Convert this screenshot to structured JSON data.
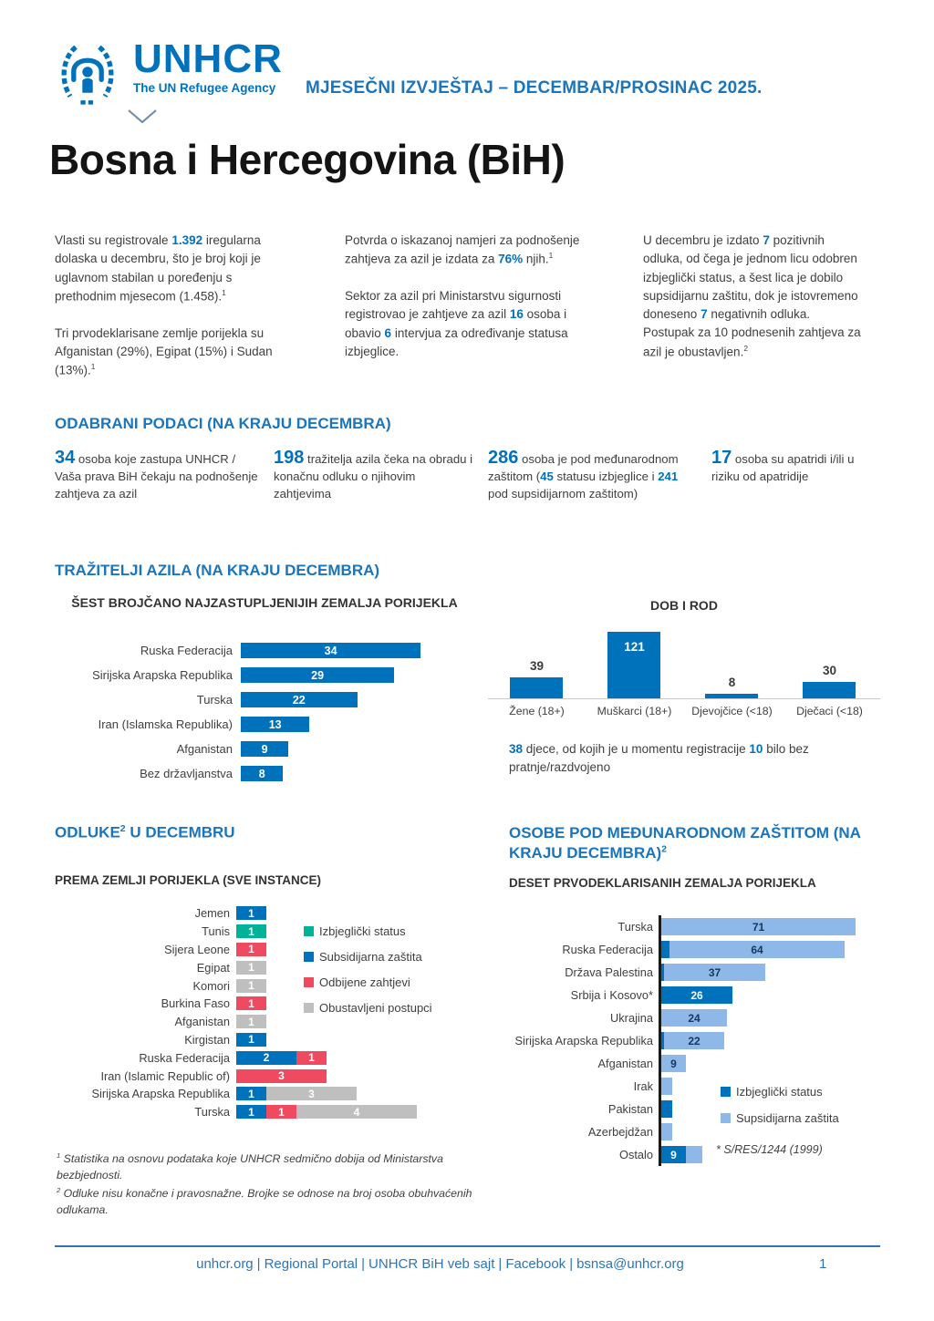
{
  "header": {
    "logo": {
      "wordmark": "UNHCR",
      "tagline": "The UN Refugee Agency"
    },
    "report_title": "MJESEČNI IZVJEŠTAJ – DECEMBAR/PROSINAC 2025.",
    "page_title": "Bosna i Hercegovina (BiH)"
  },
  "intro": {
    "columns": [
      {
        "paragraphs": [
          [
            {
              "t": "Vlasti su registrovale "
            },
            {
              "t": "1.392",
              "c": "hl"
            },
            {
              "t": " iregularna dolaska u decembru, što je broj koji je uglavnom stabilan u poređenju s prethodnim mjesecom (1.458)."
            },
            {
              "t": "1",
              "c": "sup"
            }
          ],
          [
            {
              "t": "Tri prvodeklarisane zemlje porijekla su Afganistan (29%), Egipat (15%) i Sudan (13%)."
            },
            {
              "t": "1",
              "c": "sup"
            }
          ]
        ]
      },
      {
        "paragraphs": [
          [
            {
              "t": "Potvrda o iskazanoj namjeri za podnošenje zahtjeva za azil je izdata za "
            },
            {
              "t": "76%",
              "c": "hl"
            },
            {
              "t": " njih."
            },
            {
              "t": "1",
              "c": "sup"
            }
          ],
          [
            {
              "t": "Sektor za azil pri Ministarstvu sigurnosti registrovao je zahtjeve za azil "
            },
            {
              "t": "16",
              "c": "hl"
            },
            {
              "t": " osoba i obavio "
            },
            {
              "t": "6",
              "c": "hl"
            },
            {
              "t": " intervjua za određivanje statusa izbjeglice."
            }
          ]
        ]
      },
      {
        "paragraphs": [
          [
            {
              "t": "U decembru je izdato "
            },
            {
              "t": "7",
              "c": "hl"
            },
            {
              "t": " pozitivnih odluka, od čega je jednom licu odobren izbjeglički status, a šest lica je dobilo supsidijarnu zaštitu, dok je istovremeno doneseno "
            },
            {
              "t": "7",
              "c": "hl"
            },
            {
              "t": " negativnih odluka. Postupak za 10 podnesenih zahtjeva za azil je obustavljen."
            },
            {
              "t": "2",
              "c": "sup"
            }
          ]
        ]
      }
    ]
  },
  "key_data": {
    "heading": "ODABRANI PODACI (NA KRAJU DECEMBRA)",
    "stats": [
      [
        {
          "t": "34",
          "c": "num"
        },
        {
          "t": " osoba koje zastupa UNHCR / Vaša prava BiH čekaju na podnošenje zahtjeva za azil"
        }
      ],
      [
        {
          "t": "198",
          "c": "num"
        },
        {
          "t": " tražitelja azila čeka na obradu i konačnu odluku o njihovim zahtjevima"
        }
      ],
      [
        {
          "t": "286",
          "c": "num"
        },
        {
          "t": " osoba je pod međunarodnom zaštitom ("
        },
        {
          "t": "45",
          "c": "hl"
        },
        {
          "t": " statusu izbjeglice i "
        },
        {
          "t": "241",
          "c": "hl"
        },
        {
          "t": " pod supsidijarnom zaštitom)"
        }
      ],
      [
        {
          "t": "17",
          "c": "num"
        },
        {
          "t": " osoba su apatridi i/ili u riziku od apatridije"
        }
      ]
    ]
  },
  "asylum_section": {
    "heading": "TRAŽITELJI AZILA (NA KRAJU DECEMBRA)",
    "children_note": [
      {
        "t": "38",
        "c": "hl"
      },
      {
        "t": " djece, od kojih je u momentu registracije "
      },
      {
        "t": "10",
        "c": "hl"
      },
      {
        "t": " bilo bez pratnje/razdvojeno"
      }
    ]
  },
  "decisions_section": {
    "heading_segments": [
      {
        "t": "ODLUKE"
      },
      {
        "t": "2",
        "c": "sup"
      },
      {
        "t": " U DECEMBRU"
      }
    ]
  },
  "protection_section": {
    "heading_segments": [
      {
        "t": "OSOBE POD MEĐUNARODNOM ZAŠTITOM (NA KRAJU DECEMBRA)"
      },
      {
        "t": "2",
        "c": "sup"
      }
    ]
  },
  "footnotes": [
    [
      {
        "t": "1",
        "c": "sup"
      },
      {
        "t": " Statistika na osnovu podataka koje UNHCR sedmično dobija od Ministarstva bezbjednosti."
      }
    ],
    [
      {
        "t": "2",
        "c": "sup"
      },
      {
        "t": " Odluke nisu konačne i pravosnažne. Brojke se odnose na broj osoba obuhvaćenih odlukama."
      }
    ]
  ],
  "footer": {
    "links": [
      "unhcr.org",
      "Regional Portal",
      "UNHCR BiH veb sajt",
      "Facebook",
      "bsnsa@unhcr.org"
    ],
    "page_number": "1"
  },
  "colors": {
    "brand_blue": "#0072BC",
    "light_blue": "#8DB8E8",
    "green": "#00B398",
    "red": "#EF4A60",
    "gray": "#BFBFBF",
    "heading_blue": "#1b75bc",
    "body_text": "#3F3F3F"
  },
  "chart_data": [
    {
      "id": "asylum_origin",
      "type": "bar",
      "orientation": "horizontal",
      "title": "ŠEST BROJČANO NAJZASTUPLJENIJIH ZEMALJA PORIJEKLA",
      "categories": [
        "Ruska Federacija",
        "Sirijska Arapska Republika",
        "Turska",
        "Iran (Islamska Republika)",
        "Afganistan",
        "Bez državljanstva"
      ],
      "values": [
        34,
        29,
        22,
        13,
        9,
        8
      ],
      "bar_color": "#0072BC",
      "value_labels": "inside-white",
      "xlim": [
        0,
        36
      ]
    },
    {
      "id": "age_gender",
      "type": "bar",
      "orientation": "vertical",
      "title": "DOB I ROD",
      "categories": [
        "Žene (18+)",
        "Muškarci (18+)",
        "Djevojčice (<18)",
        "Dječaci (<18)"
      ],
      "values": [
        39,
        121,
        8,
        30
      ],
      "bar_color": "#0072BC",
      "ylim": [
        0,
        130
      ]
    },
    {
      "id": "decisions_by_origin",
      "type": "stacked_bar",
      "orientation": "horizontal",
      "title": "PREMA ZEMLJI PORIJEKLA (SVE INSTANCE)",
      "categories": [
        "Jemen",
        "Tunis",
        "Sijera Leone",
        "Egipat",
        "Komori",
        "Burkina Faso",
        "Afganistan",
        "Kirgistan",
        "Ruska Federacija",
        "Iran (Islamic Republic of)",
        "Sirijska Arapska Republika",
        "Turska"
      ],
      "series": [
        {
          "name": "Izbjeglički status",
          "color": "#00B398",
          "values": [
            0,
            1,
            0,
            0,
            0,
            0,
            0,
            0,
            0,
            0,
            0,
            0
          ]
        },
        {
          "name": "Subsidijarna zaštita",
          "color": "#0072BC",
          "values": [
            1,
            0,
            0,
            0,
            0,
            0,
            0,
            1,
            2,
            0,
            1,
            1
          ]
        },
        {
          "name": "Odbijene zahtjevi",
          "color": "#EF4A60",
          "values": [
            0,
            0,
            1,
            0,
            0,
            1,
            0,
            0,
            1,
            3,
            0,
            1
          ]
        },
        {
          "name": "Obustavljeni postupci",
          "color": "#BFBFBF",
          "values": [
            0,
            0,
            0,
            1,
            1,
            0,
            1,
            0,
            0,
            0,
            3,
            4
          ]
        }
      ],
      "legend_position": "right",
      "value_labels": "inside-white"
    },
    {
      "id": "intl_protection_origin",
      "type": "stacked_bar",
      "orientation": "horizontal",
      "title": "DESET PRVODEKLARISANIH ZEMALJA PORIJEKLA",
      "categories": [
        "Turska",
        "Ruska Federacija",
        "Država Palestina",
        "Srbija i Kosovo*",
        "Ukrajina",
        "Sirijska Arapska Republika",
        "Afganistan",
        "Irak",
        "Pakistan",
        "Azerbejdžan",
        "Ostalo"
      ],
      "series": [
        {
          "name": "Izbjeglički status",
          "color": "#0072BC",
          "values": [
            0,
            3,
            1,
            26,
            0,
            1,
            0,
            0,
            4,
            0,
            9
          ]
        },
        {
          "name": "Supsidijarna zaštita",
          "color": "#8DB8E8",
          "values": [
            71,
            64,
            37,
            0,
            24,
            22,
            9,
            4,
            0,
            4,
            6
          ]
        }
      ],
      "values_note": "small unlabeled segments estimated from bar lengths",
      "note": "* S/RES/1244 (1999)",
      "legend_position": "bottom-right",
      "value_labels": "shown when value >= 9"
    }
  ]
}
